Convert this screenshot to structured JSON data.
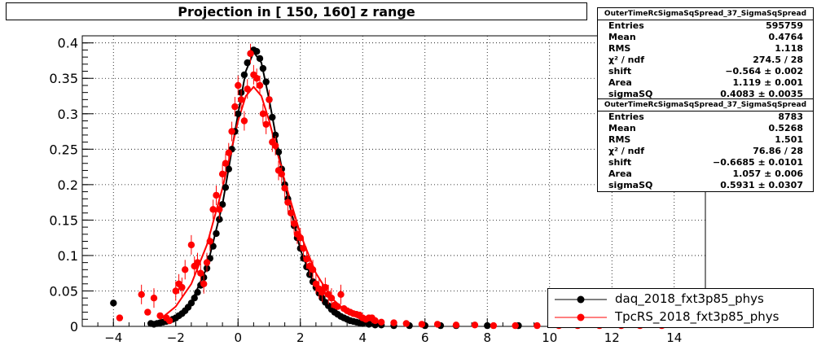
{
  "title": "Projection in [ 150, 160] z range",
  "stats_boxes": [
    {
      "header": "OuterTimeRcSigmaSqSpread_37_SigmaSqSpread",
      "rows": [
        {
          "label": "Entries",
          "value": "595759"
        },
        {
          "label": "Mean",
          "value": "0.4764"
        },
        {
          "label": "RMS",
          "value": "1.118"
        },
        {
          "label": "χ² / ndf",
          "value": "274.5 / 28"
        },
        {
          "label": "shift",
          "value": "−0.564 ± 0.002"
        },
        {
          "label": "Area",
          "value": "1.119 ± 0.001"
        },
        {
          "label": "sigmaSQ",
          "value": "0.4083 ± 0.0035"
        }
      ]
    },
    {
      "header": "OuterTimeRcSigmaSqSpread_37_SigmaSqSpread",
      "rows": [
        {
          "label": "Entries",
          "value": "8783"
        },
        {
          "label": "Mean",
          "value": "0.5268"
        },
        {
          "label": "RMS",
          "value": "1.501"
        },
        {
          "label": "χ² / ndf",
          "value": "76.86 / 28"
        },
        {
          "label": "shift",
          "value": "−0.6685 ± 0.0101"
        },
        {
          "label": "Area",
          "value": "1.057 ± 0.006"
        },
        {
          "label": "sigmaSQ",
          "value": "0.5931 ± 0.0307"
        }
      ]
    }
  ],
  "legend": [
    {
      "label": "daq_2018_fxt3p85_phys",
      "color": "#000000"
    },
    {
      "label": "TpcRS_2018_fxt3p85_phys",
      "color": "#ff0000"
    }
  ],
  "chart_data": {
    "type": "scatter",
    "title": "Projection in [ 150, 160] z range",
    "xlabel": "",
    "ylabel": "",
    "xlim": [
      -5,
      15
    ],
    "ylim": [
      0,
      0.41
    ],
    "x_ticks": [
      -4,
      -2,
      0,
      2,
      4,
      6,
      8,
      10,
      12,
      14
    ],
    "x_tick_labels": [
      "−4",
      "−2",
      "0",
      "2",
      "4",
      "6",
      "8",
      "10",
      "12",
      "14"
    ],
    "y_ticks": [
      0,
      0.05,
      0.1,
      0.15,
      0.2,
      0.25,
      0.3,
      0.35,
      0.4
    ],
    "y_tick_labels": [
      "0",
      "0.05",
      "0.1",
      "0.15",
      "0.2",
      "0.25",
      "0.3",
      "0.35",
      "0.4"
    ],
    "grid": true,
    "legend_position": "bottom-right",
    "series": [
      {
        "name": "daq_2018_fxt3p85_phys",
        "color": "#000000",
        "points": [
          [
            -4.0,
            0.033
          ],
          [
            -2.8,
            0.004
          ],
          [
            -2.7,
            0.003
          ],
          [
            -2.6,
            0.004
          ],
          [
            -2.5,
            0.005
          ],
          [
            -2.4,
            0.006
          ],
          [
            -2.3,
            0.007
          ],
          [
            -2.2,
            0.008
          ],
          [
            -2.1,
            0.01
          ],
          [
            -2.0,
            0.012
          ],
          [
            -1.9,
            0.015
          ],
          [
            -1.8,
            0.018
          ],
          [
            -1.7,
            0.022
          ],
          [
            -1.6,
            0.027
          ],
          [
            -1.5,
            0.033
          ],
          [
            -1.4,
            0.04
          ],
          [
            -1.3,
            0.048
          ],
          [
            -1.2,
            0.058
          ],
          [
            -1.1,
            0.069
          ],
          [
            -1.0,
            0.082
          ],
          [
            -0.9,
            0.096
          ],
          [
            -0.8,
            0.113
          ],
          [
            -0.7,
            0.131
          ],
          [
            -0.6,
            0.151
          ],
          [
            -0.5,
            0.172
          ],
          [
            -0.4,
            0.196
          ],
          [
            -0.3,
            0.222
          ],
          [
            -0.2,
            0.25
          ],
          [
            -0.1,
            0.275
          ],
          [
            0.0,
            0.3
          ],
          [
            0.1,
            0.33
          ],
          [
            0.2,
            0.355
          ],
          [
            0.3,
            0.372
          ],
          [
            0.4,
            0.385
          ],
          [
            0.5,
            0.39
          ],
          [
            0.6,
            0.388
          ],
          [
            0.7,
            0.378
          ],
          [
            0.8,
            0.364
          ],
          [
            0.9,
            0.345
          ],
          [
            1.0,
            0.32
          ],
          [
            1.1,
            0.295
          ],
          [
            1.2,
            0.27
          ],
          [
            1.3,
            0.246
          ],
          [
            1.4,
            0.222
          ],
          [
            1.5,
            0.2
          ],
          [
            1.6,
            0.18
          ],
          [
            1.7,
            0.16
          ],
          [
            1.8,
            0.142
          ],
          [
            1.9,
            0.125
          ],
          [
            2.0,
            0.11
          ],
          [
            2.1,
            0.096
          ],
          [
            2.2,
            0.084
          ],
          [
            2.3,
            0.073
          ],
          [
            2.4,
            0.063
          ],
          [
            2.5,
            0.055
          ],
          [
            2.6,
            0.047
          ],
          [
            2.7,
            0.04
          ],
          [
            2.8,
            0.034
          ],
          [
            2.9,
            0.029
          ],
          [
            3.0,
            0.024
          ],
          [
            3.1,
            0.02
          ],
          [
            3.2,
            0.017
          ],
          [
            3.3,
            0.014
          ],
          [
            3.4,
            0.012
          ],
          [
            3.5,
            0.01
          ],
          [
            3.6,
            0.008
          ],
          [
            3.7,
            0.007
          ],
          [
            3.8,
            0.006
          ],
          [
            3.9,
            0.005
          ],
          [
            4.0,
            0.004
          ],
          [
            4.2,
            0.003
          ],
          [
            4.4,
            0.002
          ],
          [
            4.6,
            0.002
          ],
          [
            5.0,
            0.001
          ],
          [
            5.5,
            0.001
          ],
          [
            6.0,
            0.001
          ],
          [
            6.5,
            0.001
          ],
          [
            7.0,
            0.001
          ],
          [
            8.0,
            0.001
          ],
          [
            9.0,
            0.001
          ]
        ]
      },
      {
        "name": "TpcRS_2018_fxt3p85_phys",
        "color": "#ff0000",
        "points": [
          [
            -3.8,
            0.012
          ],
          [
            -3.1,
            0.045
          ],
          [
            -2.9,
            0.02
          ],
          [
            -2.7,
            0.04
          ],
          [
            -2.5,
            0.015
          ],
          [
            -2.3,
            0.012
          ],
          [
            -2.2,
            0.008
          ],
          [
            -2.0,
            0.05
          ],
          [
            -1.9,
            0.06
          ],
          [
            -1.8,
            0.055
          ],
          [
            -1.7,
            0.08
          ],
          [
            -1.5,
            0.115
          ],
          [
            -1.4,
            0.085
          ],
          [
            -1.3,
            0.09
          ],
          [
            -1.2,
            0.075
          ],
          [
            -1.1,
            0.06
          ],
          [
            -1.0,
            0.09
          ],
          [
            -0.9,
            0.12
          ],
          [
            -0.8,
            0.165
          ],
          [
            -0.7,
            0.185
          ],
          [
            -0.6,
            0.165
          ],
          [
            -0.5,
            0.215
          ],
          [
            -0.4,
            0.23
          ],
          [
            -0.3,
            0.245
          ],
          [
            -0.2,
            0.275
          ],
          [
            -0.1,
            0.31
          ],
          [
            0.0,
            0.34
          ],
          [
            0.1,
            0.32
          ],
          [
            0.2,
            0.29
          ],
          [
            0.3,
            0.335
          ],
          [
            0.4,
            0.385
          ],
          [
            0.5,
            0.355
          ],
          [
            0.6,
            0.35
          ],
          [
            0.7,
            0.34
          ],
          [
            0.8,
            0.3
          ],
          [
            0.9,
            0.285
          ],
          [
            1.0,
            0.32
          ],
          [
            1.1,
            0.26
          ],
          [
            1.2,
            0.255
          ],
          [
            1.3,
            0.22
          ],
          [
            1.4,
            0.215
          ],
          [
            1.5,
            0.195
          ],
          [
            1.6,
            0.175
          ],
          [
            1.7,
            0.16
          ],
          [
            1.8,
            0.145
          ],
          [
            1.9,
            0.13
          ],
          [
            2.0,
            0.125
          ],
          [
            2.1,
            0.11
          ],
          [
            2.2,
            0.095
          ],
          [
            2.3,
            0.085
          ],
          [
            2.4,
            0.08
          ],
          [
            2.5,
            0.06
          ],
          [
            2.6,
            0.053
          ],
          [
            2.7,
            0.048
          ],
          [
            2.8,
            0.055
          ],
          [
            2.9,
            0.045
          ],
          [
            3.0,
            0.04
          ],
          [
            3.1,
            0.03
          ],
          [
            3.2,
            0.028
          ],
          [
            3.3,
            0.045
          ],
          [
            3.4,
            0.025
          ],
          [
            3.5,
            0.022
          ],
          [
            3.6,
            0.02
          ],
          [
            3.7,
            0.018
          ],
          [
            3.8,
            0.017
          ],
          [
            3.9,
            0.016
          ],
          [
            4.0,
            0.012
          ],
          [
            4.1,
            0.01
          ],
          [
            4.2,
            0.012
          ],
          [
            4.3,
            0.012
          ],
          [
            4.4,
            0.008
          ],
          [
            4.6,
            0.006
          ],
          [
            5.0,
            0.005
          ],
          [
            5.4,
            0.004
          ],
          [
            5.9,
            0.003
          ],
          [
            6.4,
            0.003
          ],
          [
            7.0,
            0.002
          ],
          [
            7.6,
            0.002
          ],
          [
            8.2,
            0.001
          ],
          [
            8.9,
            0.001
          ],
          [
            9.6,
            0.001
          ],
          [
            10.3,
            0.001
          ],
          [
            10.9,
            0.001
          ],
          [
            11.6,
            0.001
          ],
          [
            12.3,
            0.001
          ],
          [
            12.9,
            0.001
          ],
          [
            13.6,
            0.001
          ]
        ]
      }
    ],
    "fits": [
      {
        "name": "daq_2018_fxt3p85_phys fit",
        "color": "#000000",
        "points": [
          [
            -2.5,
            0.004
          ],
          [
            -2.0,
            0.012
          ],
          [
            -1.5,
            0.034
          ],
          [
            -1.0,
            0.083
          ],
          [
            -0.5,
            0.172
          ],
          [
            0.0,
            0.3
          ],
          [
            0.25,
            0.36
          ],
          [
            0.5,
            0.387
          ],
          [
            0.75,
            0.372
          ],
          [
            1.0,
            0.32
          ],
          [
            1.5,
            0.2
          ],
          [
            2.0,
            0.108
          ],
          [
            2.5,
            0.052
          ],
          [
            3.0,
            0.022
          ],
          [
            3.5,
            0.009
          ],
          [
            4.0,
            0.003
          ]
        ]
      },
      {
        "name": "TpcRS_2018_fxt3p85_phys fit",
        "color": "#ff0000",
        "points": [
          [
            -2.5,
            0.01
          ],
          [
            -2.0,
            0.028
          ],
          [
            -1.5,
            0.06
          ],
          [
            -1.0,
            0.115
          ],
          [
            -0.5,
            0.195
          ],
          [
            0.0,
            0.29
          ],
          [
            0.25,
            0.325
          ],
          [
            0.5,
            0.338
          ],
          [
            0.75,
            0.325
          ],
          [
            1.0,
            0.29
          ],
          [
            1.5,
            0.205
          ],
          [
            2.0,
            0.13
          ],
          [
            2.5,
            0.075
          ],
          [
            3.0,
            0.04
          ],
          [
            3.5,
            0.02
          ],
          [
            4.0,
            0.009
          ],
          [
            4.5,
            0.004
          ]
        ]
      }
    ]
  }
}
